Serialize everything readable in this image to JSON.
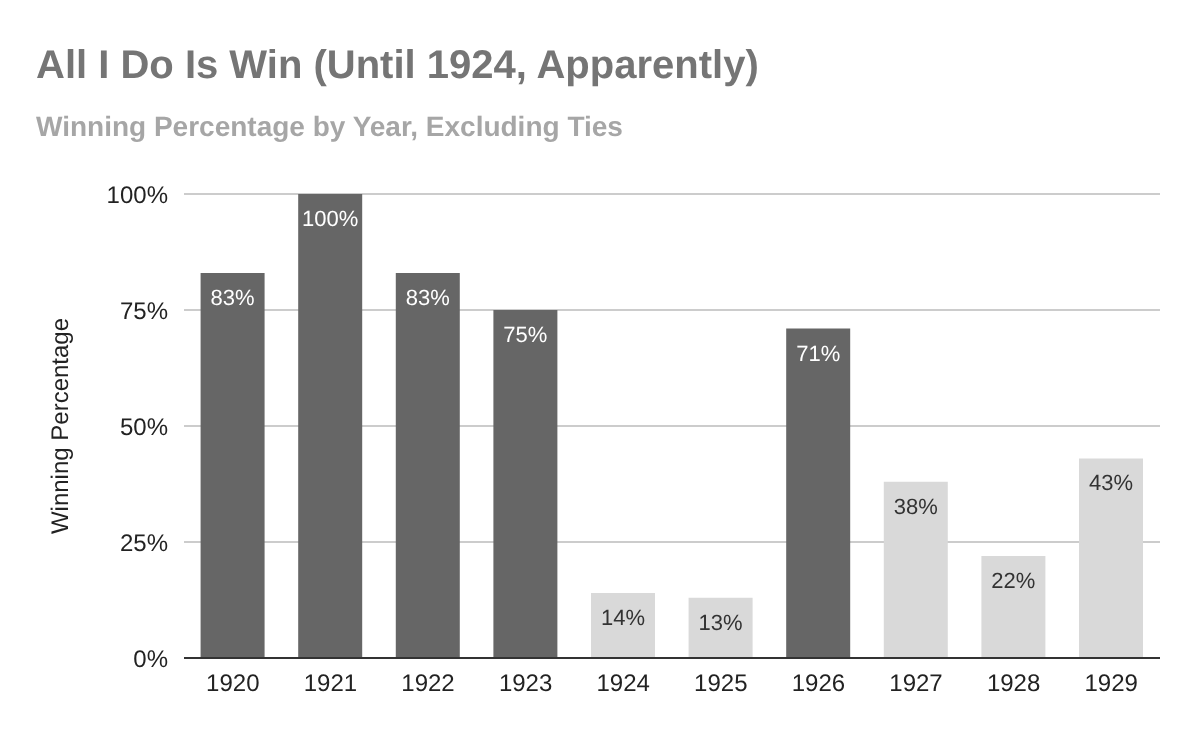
{
  "chart_data": {
    "type": "bar",
    "title": "All I Do Is Win (Until 1924, Apparently)",
    "subtitle": "Winning Percentage by Year, Excluding Ties",
    "ylabel": "Winning Percentage",
    "categories": [
      "1920",
      "1921",
      "1922",
      "1923",
      "1924",
      "1925",
      "1926",
      "1927",
      "1928",
      "1929"
    ],
    "values": [
      83,
      100,
      83,
      75,
      14,
      13,
      71,
      38,
      22,
      43
    ],
    "colors": [
      "#666666",
      "#666666",
      "#666666",
      "#666666",
      "#d9d9d9",
      "#d9d9d9",
      "#666666",
      "#d9d9d9",
      "#d9d9d9",
      "#d9d9d9"
    ],
    "value_labels": [
      "83%",
      "100%",
      "83%",
      "75%",
      "14%",
      "13%",
      "71%",
      "38%",
      "22%",
      "43%"
    ],
    "ylim": [
      0,
      100
    ],
    "yticks": [
      {
        "value": 0,
        "label": "0%"
      },
      {
        "value": 25,
        "label": "25%"
      },
      {
        "value": 50,
        "label": "50%"
      },
      {
        "value": 75,
        "label": "75%"
      },
      {
        "value": 100,
        "label": "100%"
      }
    ],
    "grid": "y"
  }
}
